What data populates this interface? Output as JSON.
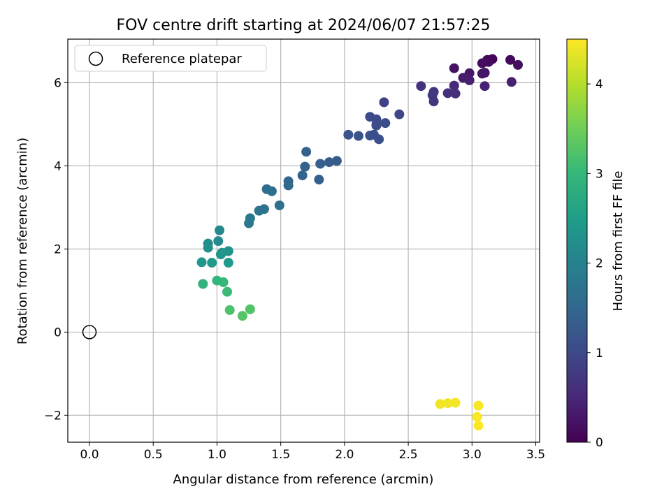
{
  "chart_data": {
    "type": "scatter",
    "title": "FOV centre drift starting at 2024/06/07 21:57:25",
    "xlabel": "Angular distance from reference (arcmin)",
    "ylabel": "Rotation from reference (arcmin)",
    "xlim": [
      -0.17,
      3.53
    ],
    "ylim": [
      -2.65,
      7.05
    ],
    "xticks": [
      0.0,
      0.5,
      1.0,
      1.5,
      2.0,
      2.5,
      3.0,
      3.5
    ],
    "xtick_labels": [
      "0.0",
      "0.5",
      "1.0",
      "1.5",
      "2.0",
      "2.5",
      "3.0",
      "3.5"
    ],
    "yticks": [
      -2,
      0,
      2,
      4,
      6
    ],
    "ytick_labels": [
      "−2",
      "0",
      "2",
      "4",
      "6"
    ],
    "grid": true,
    "legend": {
      "placement": "top-left",
      "entries": [
        "Reference platepar"
      ]
    },
    "reference_point": {
      "name": "Reference platepar",
      "x": 0.0,
      "y": 0.0
    },
    "colorbar": {
      "label": "Hours from first FF file",
      "range": [
        0,
        4.5
      ],
      "ticks": [
        0,
        1,
        2,
        3,
        4
      ],
      "tick_labels": [
        "0",
        "1",
        "2",
        "3",
        "4"
      ],
      "colormap": [
        "#440154",
        "#482878",
        "#3e4989",
        "#31688e",
        "#26828e",
        "#1f9e89",
        "#35b779",
        "#6ece58",
        "#b5de2b",
        "#fde725"
      ]
    },
    "points": [
      {
        "x": 3.16,
        "y": 6.57,
        "t": 0.05
      },
      {
        "x": 3.12,
        "y": 6.55,
        "t": 0.08
      },
      {
        "x": 3.3,
        "y": 6.55,
        "t": 0.1
      },
      {
        "x": 3.13,
        "y": 6.5,
        "t": 0.12
      },
      {
        "x": 3.08,
        "y": 6.47,
        "t": 0.15
      },
      {
        "x": 3.36,
        "y": 6.43,
        "t": 0.18
      },
      {
        "x": 2.86,
        "y": 6.35,
        "t": 0.22
      },
      {
        "x": 3.1,
        "y": 6.24,
        "t": 0.25
      },
      {
        "x": 3.08,
        "y": 6.22,
        "t": 0.28
      },
      {
        "x": 2.98,
        "y": 6.23,
        "t": 0.3
      },
      {
        "x": 2.93,
        "y": 6.12,
        "t": 0.35
      },
      {
        "x": 2.98,
        "y": 6.06,
        "t": 0.38
      },
      {
        "x": 3.31,
        "y": 6.02,
        "t": 0.4
      },
      {
        "x": 3.1,
        "y": 5.92,
        "t": 0.42
      },
      {
        "x": 2.86,
        "y": 5.93,
        "t": 0.55
      },
      {
        "x": 2.6,
        "y": 5.92,
        "t": 0.65
      },
      {
        "x": 2.7,
        "y": 5.78,
        "t": 0.68
      },
      {
        "x": 2.81,
        "y": 5.75,
        "t": 0.6
      },
      {
        "x": 2.69,
        "y": 5.7,
        "t": 0.75
      },
      {
        "x": 2.87,
        "y": 5.74,
        "t": 0.62
      },
      {
        "x": 2.7,
        "y": 5.55,
        "t": 0.7
      },
      {
        "x": 2.31,
        "y": 5.53,
        "t": 0.9
      },
      {
        "x": 2.43,
        "y": 5.24,
        "t": 0.95
      },
      {
        "x": 2.2,
        "y": 5.18,
        "t": 1.0
      },
      {
        "x": 2.25,
        "y": 5.12,
        "t": 1.02
      },
      {
        "x": 2.25,
        "y": 5.0,
        "t": 1.05
      },
      {
        "x": 2.32,
        "y": 5.03,
        "t": 1.08
      },
      {
        "x": 2.25,
        "y": 4.97,
        "t": 1.06
      },
      {
        "x": 2.03,
        "y": 4.75,
        "t": 1.2
      },
      {
        "x": 2.11,
        "y": 4.72,
        "t": 1.18
      },
      {
        "x": 2.2,
        "y": 4.73,
        "t": 1.15
      },
      {
        "x": 2.23,
        "y": 4.75,
        "t": 1.12
      },
      {
        "x": 2.27,
        "y": 4.64,
        "t": 1.1
      },
      {
        "x": 1.7,
        "y": 4.34,
        "t": 1.4
      },
      {
        "x": 1.94,
        "y": 4.12,
        "t": 1.3
      },
      {
        "x": 1.88,
        "y": 4.09,
        "t": 1.32
      },
      {
        "x": 1.81,
        "y": 4.05,
        "t": 1.35
      },
      {
        "x": 1.69,
        "y": 3.98,
        "t": 1.42
      },
      {
        "x": 1.67,
        "y": 3.77,
        "t": 1.45
      },
      {
        "x": 1.8,
        "y": 3.67,
        "t": 1.38
      },
      {
        "x": 1.56,
        "y": 3.63,
        "t": 1.5
      },
      {
        "x": 1.56,
        "y": 3.53,
        "t": 1.52
      },
      {
        "x": 1.39,
        "y": 3.44,
        "t": 1.6
      },
      {
        "x": 1.43,
        "y": 3.39,
        "t": 1.62
      },
      {
        "x": 1.49,
        "y": 3.05,
        "t": 1.65
      },
      {
        "x": 1.37,
        "y": 2.96,
        "t": 1.7
      },
      {
        "x": 1.33,
        "y": 2.92,
        "t": 1.72
      },
      {
        "x": 1.26,
        "y": 2.74,
        "t": 1.8
      },
      {
        "x": 1.25,
        "y": 2.62,
        "t": 1.82
      },
      {
        "x": 1.02,
        "y": 2.45,
        "t": 2.1
      },
      {
        "x": 1.01,
        "y": 2.19,
        "t": 2.15
      },
      {
        "x": 0.93,
        "y": 2.13,
        "t": 2.2
      },
      {
        "x": 0.93,
        "y": 2.03,
        "t": 2.25
      },
      {
        "x": 1.09,
        "y": 1.95,
        "t": 2.3
      },
      {
        "x": 1.04,
        "y": 1.91,
        "t": 2.32
      },
      {
        "x": 1.03,
        "y": 1.87,
        "t": 2.35
      },
      {
        "x": 0.88,
        "y": 1.68,
        "t": 2.4
      },
      {
        "x": 0.96,
        "y": 1.67,
        "t": 2.42
      },
      {
        "x": 1.09,
        "y": 1.67,
        "t": 2.45
      },
      {
        "x": 0.89,
        "y": 1.16,
        "t": 2.9
      },
      {
        "x": 1.0,
        "y": 1.24,
        "t": 2.95
      },
      {
        "x": 1.05,
        "y": 1.2,
        "t": 3.0
      },
      {
        "x": 1.08,
        "y": 0.97,
        "t": 3.05
      },
      {
        "x": 1.1,
        "y": 0.53,
        "t": 3.2
      },
      {
        "x": 1.26,
        "y": 0.55,
        "t": 3.25
      },
      {
        "x": 1.2,
        "y": 0.39,
        "t": 3.3
      },
      {
        "x": 2.75,
        "y": -1.73,
        "t": 4.4
      },
      {
        "x": 2.81,
        "y": -1.71,
        "t": 4.42
      },
      {
        "x": 2.87,
        "y": -1.7,
        "t": 4.44
      },
      {
        "x": 3.05,
        "y": -1.77,
        "t": 4.46
      },
      {
        "x": 3.04,
        "y": -2.04,
        "t": 4.48
      },
      {
        "x": 3.05,
        "y": -2.25,
        "t": 4.5
      }
    ]
  }
}
